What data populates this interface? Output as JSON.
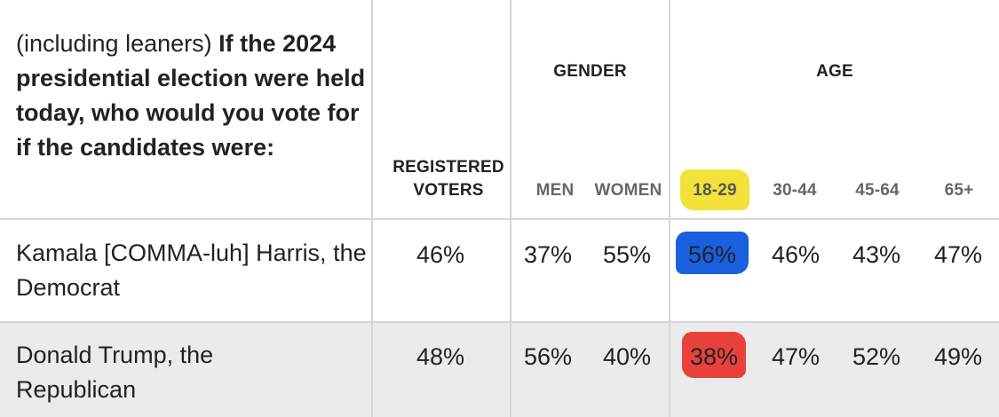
{
  "question": {
    "prefix": "(including leaners)",
    "text": "If the 2024 presidential election were held today, who would you vote for if the candidates were:"
  },
  "headers": {
    "registered_line1": "REGISTERED",
    "registered_line2": "VOTERS",
    "gender": "GENDER",
    "age": "AGE",
    "men": "MEN",
    "women": "WOMEN",
    "age_18_29": "18-29",
    "age_30_44": "30-44",
    "age_45_64": "45-64",
    "age_65_plus": "65+"
  },
  "rows": [
    {
      "label": "Kamala [COMMA-luh] Harris, the Democrat",
      "registered": "46%",
      "men": "37%",
      "women": "55%",
      "age_18_29": "56%",
      "age_30_44": "46%",
      "age_45_64": "43%",
      "age_65_plus": "47%"
    },
    {
      "label": "Donald Trump, the Republican",
      "registered": "48%",
      "men": "56%",
      "women": "40%",
      "age_18_29": "38%",
      "age_30_44": "47%",
      "age_45_64": "52%",
      "age_65_plus": "49%"
    }
  ],
  "highlight_colors": {
    "age_header": "#f3e23a",
    "harris_18_29": "#1a5fe0",
    "trump_18_29": "#e8413c"
  }
}
